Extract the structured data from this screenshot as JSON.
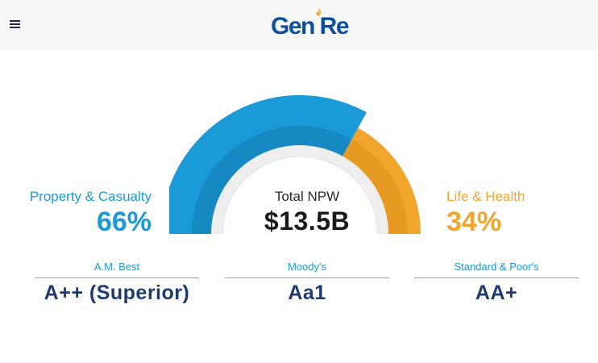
{
  "header": {
    "logo_text": "Gen Re",
    "brand_color": "#0e4f9c",
    "flame_color": "#f2a52c",
    "menu_icon": "hamburger-menu-icon"
  },
  "summary": {
    "center_label": "Total NPW",
    "center_value": "$13.5B"
  },
  "segments": [
    {
      "label": "Property & Casualty",
      "value": "66%",
      "share": 0.66,
      "color": "#1a9ad6"
    },
    {
      "label": "Life & Health",
      "value": "34%",
      "share": 0.34,
      "color": "#f2a52c"
    }
  ],
  "ratings": [
    {
      "agency": "A.M. Best",
      "grade": "A++ (Superior)"
    },
    {
      "agency": "Moody's",
      "grade": "Aa1"
    },
    {
      "agency": "Standard & Poor's",
      "grade": "AA+"
    }
  ]
}
